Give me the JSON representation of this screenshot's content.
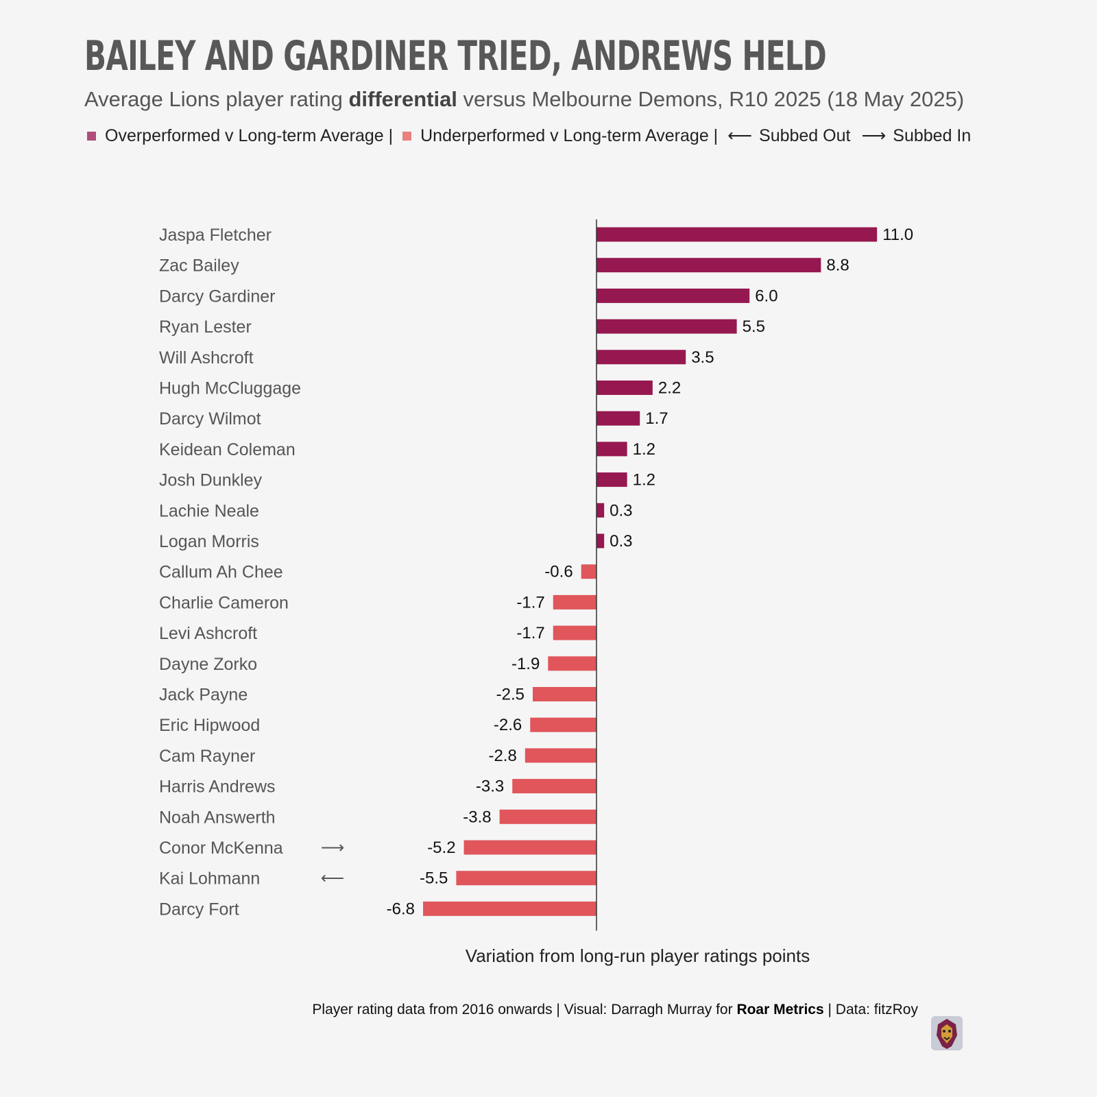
{
  "header": {
    "title": "BAILEY AND GARDINER TRIED, ANDREWS HELD",
    "subtitle_pre": "Average Lions player rating ",
    "subtitle_bold": "differential",
    "subtitle_post": " versus Melbourne Demons, R10 2025 (18 May 2025)"
  },
  "legend": {
    "over_label": "Overperformed v Long-term Average |",
    "under_label": "Underperformed v Long-term Average |",
    "subbed_out_icon": "left-arrow-icon",
    "subbed_out_glyph": "⟵",
    "subbed_out_label": "Subbed Out",
    "subbed_in_icon": "right-arrow-icon",
    "subbed_in_glyph": "⟶",
    "subbed_in_label": "Subbed In"
  },
  "colors": {
    "over": "#961850",
    "under": "#e0565b",
    "over_legend": "#b04d7c",
    "under_legend": "#e8807f",
    "axis": "#333333"
  },
  "chart_data": {
    "type": "bar",
    "orientation": "horizontal",
    "categories": [
      "Jaspa Fletcher",
      "Zac Bailey",
      "Darcy Gardiner",
      "Ryan Lester",
      "Will Ashcroft",
      "Hugh McCluggage",
      "Darcy Wilmot",
      "Keidean Coleman",
      "Josh Dunkley",
      "Lachie Neale",
      "Logan Morris",
      "Callum Ah Chee",
      "Charlie Cameron",
      "Levi Ashcroft",
      "Dayne Zorko",
      "Jack Payne",
      "Eric Hipwood",
      "Cam Rayner",
      "Harris Andrews",
      "Noah Answerth",
      "Conor McKenna",
      "Kai Lohmann",
      "Darcy Fort"
    ],
    "values": [
      11.0,
      8.8,
      6.0,
      5.5,
      3.5,
      2.2,
      1.7,
      1.2,
      1.2,
      0.3,
      0.3,
      -0.6,
      -1.7,
      -1.7,
      -1.9,
      -2.5,
      -2.6,
      -2.8,
      -3.3,
      -3.8,
      -5.2,
      -5.5,
      -6.8
    ],
    "value_labels": [
      "11.0",
      "8.8",
      "6.0",
      "5.5",
      "3.5",
      "2.2",
      "1.7",
      "1.2",
      "1.2",
      "0.3",
      "0.3",
      "-0.6",
      "-1.7",
      "-1.7",
      "-1.9",
      "-2.5",
      "-2.6",
      "-2.8",
      "-3.3",
      "-3.8",
      "-5.2",
      "-5.5",
      "-6.8"
    ],
    "substitutions": {
      "Conor McKenna": "in",
      "Kai Lohmann": "out"
    },
    "xlabel": "Variation from long-run player ratings points",
    "grid": false,
    "legend_position": "top"
  },
  "footer": {
    "pre": "Player rating data from 2016 onwards | Visual: Darragh Murray for ",
    "bold": "Roar Metrics",
    "post": " | Data: fitzRoy",
    "logo_icon": "lion-logo-icon"
  }
}
